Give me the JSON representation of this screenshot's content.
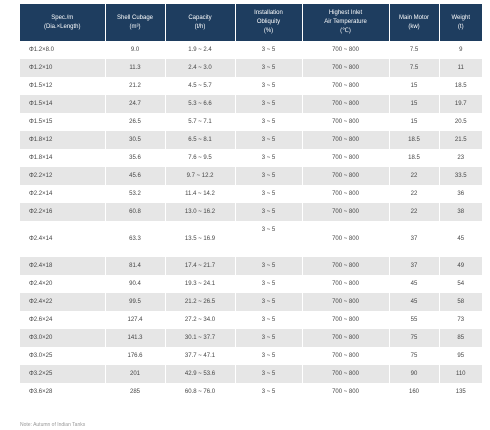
{
  "table": {
    "headers": [
      [
        "Spec./m",
        "(Dia.×Length)"
      ],
      [
        "Shell Cubage",
        "(m³)"
      ],
      [
        "Capacity",
        "(t/h)"
      ],
      [
        "Installation",
        "Obliquity",
        "(%)"
      ],
      [
        "Highest Inlet",
        "Air Temperature",
        "(℃)"
      ],
      [
        "Main Motor",
        "(kw)"
      ],
      [
        "Weight",
        "(t)"
      ]
    ],
    "rows": [
      [
        "Φ1.2×8.0",
        "9.0",
        "1.9 ~ 2.4",
        "3 ~ 5",
        "700 ~ 800",
        "7.5",
        "9"
      ],
      [
        "Φ1.2×10",
        "11.3",
        "2.4 ~ 3.0",
        "3 ~ 5",
        "700 ~ 800",
        "7.5",
        "11"
      ],
      [
        "Φ1.5×12",
        "21.2",
        "4.5 ~ 5.7",
        "3 ~ 5",
        "700 ~ 800",
        "15",
        "18.5"
      ],
      [
        "Φ1.5×14",
        "24.7",
        "5.3 ~ 6.6",
        "3 ~ 5",
        "700 ~ 800",
        "15",
        "19.7"
      ],
      [
        "Φ1.5×15",
        "26.5",
        "5.7 ~ 7.1",
        "3 ~ 5",
        "700 ~ 800",
        "15",
        "20.5"
      ],
      [
        "Φ1.8×12",
        "30.5",
        "6.5 ~ 8.1",
        "3 ~ 5",
        "700 ~ 800",
        "18.5",
        "21.5"
      ],
      [
        "Φ1.8×14",
        "35.6",
        "7.6 ~ 9.5",
        "3 ~ 5",
        "700 ~ 800",
        "18.5",
        "23"
      ],
      [
        "Φ2.2×12",
        "45.6",
        "9.7 ~ 12.2",
        "3 ~ 5",
        "700 ~ 800",
        "22",
        "33.5"
      ],
      [
        "Φ2.2×14",
        "53.2",
        "11.4 ~ 14.2",
        "3 ~ 5",
        "700 ~ 800",
        "22",
        "36"
      ],
      [
        "Φ2.2×16",
        "60.8",
        "13.0 ~ 16.2",
        "3 ~ 5",
        "700 ~ 800",
        "22",
        "38"
      ],
      [
        "Φ2.4×14",
        "63.3",
        "13.5 ~ 16.9",
        "3 ~ 5",
        "700 ~ 800",
        "37",
        "45"
      ],
      [
        "Φ2.4×18",
        "81.4",
        "17.4 ~ 21.7",
        "3 ~ 5",
        "700 ~ 800",
        "37",
        "49"
      ],
      [
        "Φ2.4×20",
        "90.4",
        "19.3 ~ 24.1",
        "3 ~ 5",
        "700 ~ 800",
        "45",
        "54"
      ],
      [
        "Φ2.4×22",
        "99.5",
        "21.2 ~ 26.5",
        "3 ~ 5",
        "700 ~ 800",
        "45",
        "58"
      ],
      [
        "Φ2.6×24",
        "127.4",
        "27.2 ~ 34.0",
        "3 ~ 5",
        "700 ~ 800",
        "55",
        "73"
      ],
      [
        "Φ3.0×20",
        "141.3",
        "30.1 ~ 37.7",
        "3 ~ 5",
        "700 ~ 800",
        "75",
        "85"
      ],
      [
        "Φ3.0×25",
        "176.6",
        "37.7 ~ 47.1",
        "3 ~ 5",
        "700 ~ 800",
        "75",
        "95"
      ],
      [
        "Φ3.2×25",
        "201",
        "42.9 ~ 53.6",
        "3 ~ 5",
        "700 ~ 800",
        "90",
        "110"
      ],
      [
        "Φ3.6×28",
        "285",
        "60.8 ~ 76.0",
        "3 ~ 5",
        "700 ~ 800",
        "160",
        "135"
      ]
    ]
  },
  "footnote": "Note: Autumn of Indian Tanks"
}
